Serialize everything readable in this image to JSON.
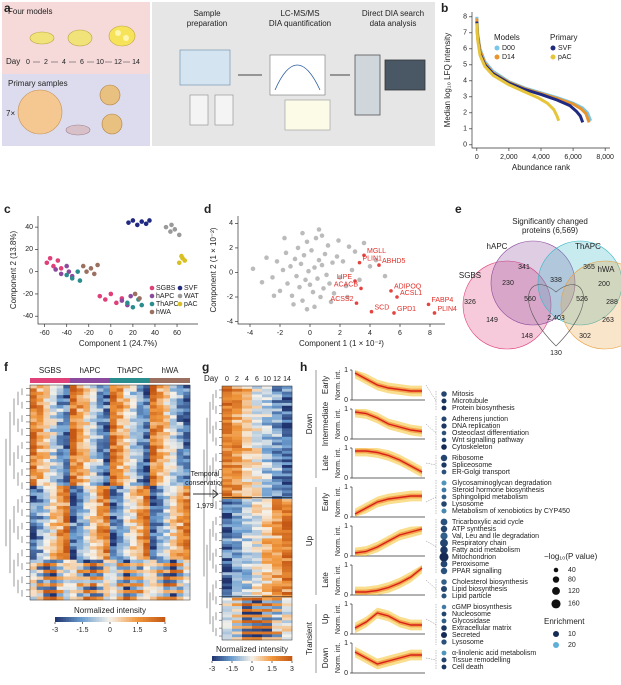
{
  "panel_labels": [
    "a",
    "b",
    "c",
    "d",
    "e",
    "f",
    "g",
    "h"
  ],
  "panel_a": {
    "models_label": "Four models",
    "day_label": "Day",
    "days": [
      "0",
      "2",
      "4",
      "6",
      "10",
      "12",
      "14"
    ],
    "primary_label": "Primary samples",
    "replicate": "7×",
    "steps": [
      [
        "Sample",
        "preparation"
      ],
      [
        "LC-MS/MS",
        "DIA quantification"
      ],
      [
        "Direct DIA search",
        "data analysis"
      ]
    ]
  },
  "chart_data": [
    {
      "type": "line",
      "xlabel": "Abundance rank",
      "ylabel": "Median log₁₀ LFQ intensity",
      "xlim": [
        -300,
        8300
      ],
      "xticks": [
        0,
        {
          "value": 2000,
          "label": "2,000"
        },
        {
          "value": 4000,
          "label": "4,000"
        },
        {
          "value": 6000,
          "label": "6,000"
        },
        {
          "value": 8000,
          "label": "8,000"
        }
      ],
      "ylim": [
        -0.2,
        8.3
      ],
      "yticks": [
        0,
        1,
        2,
        3,
        4,
        5,
        6,
        7,
        8
      ],
      "legend_titles": [
        "Models",
        "Primary"
      ],
      "series": [
        {
          "name": "D00",
          "color": "#7ac6ea",
          "x": [
            0,
            50,
            200,
            500,
            1000,
            2000,
            3000,
            4000,
            5000,
            6000,
            6600,
            6900,
            7100
          ],
          "values": [
            8.0,
            7.0,
            6.0,
            5.2,
            4.6,
            3.95,
            3.55,
            3.25,
            2.95,
            2.6,
            2.3,
            2.0,
            1.5
          ]
        },
        {
          "name": "D14",
          "color": "#e8952e",
          "x": [
            0,
            50,
            200,
            500,
            1000,
            2000,
            3000,
            4000,
            5000,
            6000,
            6500,
            6800,
            7000
          ],
          "values": [
            7.9,
            6.9,
            5.9,
            5.1,
            4.5,
            3.9,
            3.5,
            3.2,
            2.9,
            2.55,
            2.25,
            1.95,
            1.4
          ]
        },
        {
          "name": "SVF",
          "color": "#1f2a80",
          "x": [
            0,
            50,
            200,
            500,
            1000,
            2000,
            3000,
            4000,
            5000,
            5800,
            6200,
            6450,
            6600
          ],
          "values": [
            7.7,
            6.7,
            5.7,
            5.0,
            4.45,
            3.85,
            3.45,
            3.15,
            2.8,
            2.45,
            2.1,
            1.8,
            1.4
          ]
        },
        {
          "name": "pAC",
          "color": "#e6c53a",
          "x": [
            0,
            50,
            200,
            500,
            1000,
            2000,
            3000,
            3800,
            4400,
            4800,
            5000,
            5100
          ],
          "values": [
            7.6,
            6.6,
            5.6,
            4.9,
            4.35,
            3.75,
            3.3,
            2.95,
            2.6,
            2.2,
            1.8,
            1.5
          ]
        }
      ]
    },
    {
      "type": "scatter",
      "xlabel": "Component 1 (24.7%)",
      "ylabel": "Component 2 (13.8%)",
      "xlim": [
        -66,
        79
      ],
      "xticks": [
        -60,
        -40,
        -20,
        0,
        20,
        40,
        60
      ],
      "ylim": [
        -47,
        50
      ],
      "yticks": [
        -40,
        -20,
        0,
        20,
        40
      ],
      "series": [
        {
          "name": "SGBS",
          "color": "#e0407a",
          "x": [
            -58,
            -55,
            -52,
            -48,
            -45,
            -10,
            -5,
            0,
            5,
            10
          ],
          "values": [
            8,
            12,
            5,
            10,
            3,
            -22,
            -25,
            -20,
            -28,
            -24
          ]
        },
        {
          "name": "hAPC",
          "color": "#8c4a9e",
          "x": [
            -50,
            -45,
            -40,
            -38,
            -35,
            10,
            15,
            18
          ],
          "values": [
            2,
            -2,
            5,
            0,
            -4,
            -26,
            -30,
            -22
          ]
        },
        {
          "name": "ThAPC",
          "color": "#2a8c8c",
          "x": [
            -40,
            -35,
            -30,
            -28,
            15,
            20,
            25,
            28
          ],
          "values": [
            -3,
            -6,
            0,
            -8,
            -28,
            -32,
            -25,
            -30
          ]
        },
        {
          "name": "hWA",
          "color": "#9c7060",
          "x": [
            -25,
            -22,
            -18,
            -15,
            -12,
            22,
            26
          ],
          "values": [
            5,
            0,
            3,
            -2,
            6,
            -20,
            -24
          ]
        },
        {
          "name": "SVF",
          "color": "#1f2a80",
          "x": [
            16,
            20,
            24,
            28,
            32,
            35
          ],
          "values": [
            44,
            46,
            42,
            45,
            43,
            46
          ]
        },
        {
          "name": "WAT",
          "color": "#9a9a9a",
          "x": [
            50,
            54,
            58,
            62,
            55
          ],
          "values": [
            40,
            36,
            38,
            33,
            42
          ]
        },
        {
          "name": "pAC",
          "color": "#d8c020",
          "x": [
            62,
            65,
            67,
            64
          ],
          "values": [
            8,
            12,
            10,
            14
          ]
        }
      ]
    },
    {
      "type": "scatter",
      "xlabel": "Component 1 (1 × 10⁻²)",
      "ylabel": "Component 2 (1 × 10⁻²)",
      "xlim": [
        -4.8,
        9
      ],
      "xticks": [
        -4,
        -2,
        0,
        2,
        4,
        6,
        8
      ],
      "ylim": [
        -4.2,
        4.6
      ],
      "yticks": [
        -4,
        -2,
        0,
        2,
        4
      ],
      "series": [
        {
          "color": "#b4b4b4",
          "x": [
            -3.8,
            -3.2,
            -2.9,
            -2.5,
            -2.2,
            -2.0,
            -1.8,
            -1.6,
            -1.5,
            -1.3,
            -1.2,
            -1.0,
            -0.9,
            -0.8,
            -0.7,
            -0.6,
            -0.5,
            -0.4,
            -0.3,
            -0.2,
            -0.1,
            0,
            0.1,
            0.2,
            0.3,
            0.4,
            0.5,
            0.6,
            0.7,
            0.8,
            0.9,
            1.0,
            1.1,
            1.2,
            1.3,
            1.5,
            1.6,
            1.8,
            2.0,
            2.2,
            2.4,
            2.6,
            2.8,
            3.0,
            3.3,
            3.6,
            4.0,
            4.4,
            5.0,
            -1.1,
            0.3,
            -0.5,
            1.4,
            0.8,
            -2.4,
            2.5,
            -0.2,
            0.6,
            1.9,
            -1.7
          ],
          "values": [
            0.3,
            -0.8,
            1.2,
            -0.4,
            0.9,
            -1.5,
            0.2,
            1.6,
            -0.9,
            0.5,
            -1.9,
            1.1,
            -0.3,
            2.0,
            -1.2,
            0.7,
            -2.3,
            1.4,
            -0.6,
            2.5,
            0.1,
            -1.0,
            1.8,
            -1.6,
            0.4,
            2.8,
            -0.5,
            1.0,
            -2.0,
            0.6,
            -1.3,
            1.5,
            -0.2,
            2.2,
            -0.9,
            0.8,
            -1.7,
            1.3,
            -0.4,
            0.9,
            -1.1,
            2.1,
            0.2,
            1.7,
            -0.6,
            2.4,
            0.5,
            1.0,
            -0.3,
            -2.6,
            -2.8,
            3.2,
            -2.4,
            3.0,
            -1.9,
            -2.0,
            -3.0,
            3.5,
            2.6,
            2.8
          ]
        },
        {
          "color": "#e0302a",
          "labels": [
            "MGLL",
            "PLIN1",
            "ABHD5",
            "LIPE",
            "ACACB",
            "ADIPOQ",
            "ACSL1",
            "FABP4",
            "PLIN4",
            "ACSS2",
            "SCD",
            "GPD1"
          ],
          "x": [
            3.6,
            3.3,
            4.6,
            3.0,
            3.4,
            5.4,
            5.8,
            7.9,
            8.3,
            3.1,
            4.1,
            5.6
          ],
          "values": [
            1.4,
            0.8,
            0.6,
            -0.7,
            -1.3,
            -1.5,
            -2.0,
            -2.6,
            -3.3,
            -2.5,
            -3.2,
            -3.3
          ]
        }
      ]
    }
  ],
  "venn": {
    "title_lines": [
      "Significantly changed",
      "proteins (6,569)"
    ],
    "sets": [
      "hAPC",
      "ThAPC",
      "SGBS",
      "hWA"
    ],
    "regions": [
      "341",
      "365",
      "230",
      "338",
      "200",
      "326",
      "560",
      "526",
      "288",
      "2,403",
      "149",
      "263",
      "148",
      "302",
      "130"
    ]
  },
  "heatmap_f": {
    "groups": [
      "SGBS",
      "hAPC",
      "ThAPC",
      "hWA"
    ],
    "group_colors": [
      "#e0407a",
      "#8c4a9e",
      "#2a8c8c",
      "#9c7060"
    ],
    "colorbar_label": "Normalized intensity",
    "colorbar_ticks": [
      -3,
      -1.5,
      0,
      1.5,
      3
    ]
  },
  "temporal": {
    "label_lines": [
      "Temporal",
      "conservation"
    ],
    "count": "1,979"
  },
  "heatmap_g": {
    "day_label": "Day",
    "days": [
      "0",
      "2",
      "4",
      "6",
      "10",
      "12",
      "14"
    ],
    "colorbar_label": "Normalized intensity",
    "colorbar_ticks": [
      -3,
      -1.5,
      0,
      1.5,
      3
    ]
  },
  "panel_h": {
    "direction_labels": [
      "Down",
      "Up",
      "Transient"
    ],
    "ylabel": "Norm. int.",
    "yticks": [
      0,
      1
    ],
    "clusters": [
      {
        "label": "Early",
        "profile": [
          0.9,
          0.7,
          0.5,
          0.4,
          0.35,
          0.3,
          0.3
        ],
        "terms": [
          {
            "name": "Mitosis",
            "p": 60,
            "enrichment": 12
          },
          {
            "name": "Microtubule",
            "p": 50,
            "enrichment": 11
          },
          {
            "name": "Protein biosynthesis",
            "p": 45,
            "enrichment": 10
          }
        ]
      },
      {
        "label": "Intermediate",
        "profile": [
          0.9,
          0.85,
          0.7,
          0.5,
          0.4,
          0.3,
          0.25
        ],
        "terms": [
          {
            "name": "Adherens junction",
            "p": 50,
            "enrichment": 12
          },
          {
            "name": "DNA replication",
            "p": 55,
            "enrichment": 11
          },
          {
            "name": "Osteoclast differentiation",
            "p": 40,
            "enrichment": 13
          },
          {
            "name": "Wnt signalling pathway",
            "p": 40,
            "enrichment": 12
          },
          {
            "name": "Cytoskeleton",
            "p": 60,
            "enrichment": 10
          }
        ]
      },
      {
        "label": "Late",
        "profile": [
          0.9,
          0.9,
          0.85,
          0.75,
          0.6,
          0.4,
          0.2
        ],
        "terms": [
          {
            "name": "Ribosome",
            "p": 80,
            "enrichment": 12
          },
          {
            "name": "Spliceosome",
            "p": 55,
            "enrichment": 11
          },
          {
            "name": "ER-Golgi transport",
            "p": 45,
            "enrichment": 13
          }
        ]
      },
      {
        "label": "Early",
        "profile": [
          0.1,
          0.3,
          0.5,
          0.6,
          0.65,
          0.7,
          0.7
        ],
        "terms": [
          {
            "name": "Glycosaminoglycan degradation",
            "p": 50,
            "enrichment": 18
          },
          {
            "name": "Steroid hormone biosynthesis",
            "p": 45,
            "enrichment": 16
          },
          {
            "name": "Sphingolipid metabolism",
            "p": 45,
            "enrichment": 14
          },
          {
            "name": "Lysosome",
            "p": 60,
            "enrichment": 12
          },
          {
            "name": "Metabolism of xenobiotics by CYP450",
            "p": 50,
            "enrichment": 17
          }
        ]
      },
      {
        "label": null,
        "profile": [
          0.1,
          0.15,
          0.3,
          0.5,
          0.7,
          0.8,
          0.9
        ],
        "terms": [
          {
            "name": "Tricarboxylic acid cycle",
            "p": 90,
            "enrichment": 13
          },
          {
            "name": "ATP synthesis",
            "p": 80,
            "enrichment": 12
          },
          {
            "name": "Val, Leu and Ile degradation",
            "p": 100,
            "enrichment": 14
          },
          {
            "name": "Respiratory chain",
            "p": 120,
            "enrichment": 12
          },
          {
            "name": "Fatty acid metabolism",
            "p": 110,
            "enrichment": 11
          },
          {
            "name": "Mitochondrion",
            "p": 160,
            "enrichment": 10
          },
          {
            "name": "Peroxisome",
            "p": 90,
            "enrichment": 12
          },
          {
            "name": "PPAR signalling",
            "p": 80,
            "enrichment": 13
          }
        ]
      },
      {
        "label": "Late",
        "profile": [
          0.1,
          0.1,
          0.15,
          0.25,
          0.4,
          0.6,
          0.9
        ],
        "terms": [
          {
            "name": "Cholesterol biosynthesis",
            "p": 60,
            "enrichment": 14
          },
          {
            "name": "Lipid biosynthesis",
            "p": 70,
            "enrichment": 12
          },
          {
            "name": "Lipid particle",
            "p": 50,
            "enrichment": 13
          }
        ]
      },
      {
        "label": "Up",
        "profile": [
          0.2,
          0.4,
          0.7,
          0.6,
          0.4,
          0.3,
          0.3
        ],
        "terms": [
          {
            "name": "cGMP biosynthesis",
            "p": 40,
            "enrichment": 16
          },
          {
            "name": "Nucleosome",
            "p": 45,
            "enrichment": 12
          },
          {
            "name": "Glycosidase",
            "p": 45,
            "enrichment": 14
          },
          {
            "name": "Extracellular matrix",
            "p": 60,
            "enrichment": 11
          },
          {
            "name": "Secreted",
            "p": 70,
            "enrichment": 10
          },
          {
            "name": "Lysosome",
            "p": 55,
            "enrichment": 13
          }
        ]
      },
      {
        "label": "Down",
        "profile": [
          0.7,
          0.5,
          0.3,
          0.4,
          0.5,
          0.6,
          0.6
        ],
        "terms": [
          {
            "name": "α-linolenic acid metabolism",
            "p": 45,
            "enrichment": 18
          },
          {
            "name": "Tissue remodelling",
            "p": 50,
            "enrichment": 12
          },
          {
            "name": "Cell death",
            "p": 45,
            "enrichment": 11
          }
        ]
      }
    ],
    "legend": {
      "p_title": "−log₁₀(P value)",
      "p_values": [
        40,
        80,
        120,
        160
      ],
      "enrichment_title": "Enrichment",
      "enrichment_values": [
        10,
        20
      ]
    }
  }
}
